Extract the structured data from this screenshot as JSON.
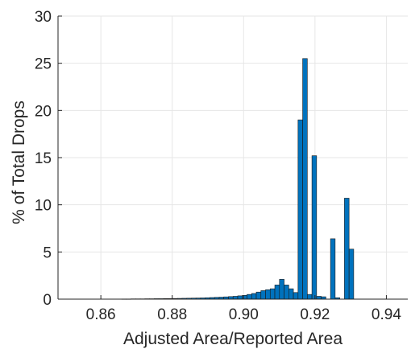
{
  "chart_data": {
    "type": "bar",
    "xlabel": "Adjusted Area/Reported Area",
    "ylabel": "% of Total Drops",
    "xlim": [
      0.848,
      0.946
    ],
    "ylim": [
      0,
      30
    ],
    "xticks": [
      0.86,
      0.88,
      0.9,
      0.92,
      0.94
    ],
    "xtick_labels": [
      "0.86",
      "0.88",
      "0.90",
      "0.92",
      "0.94"
    ],
    "yticks": [
      0,
      5,
      10,
      15,
      20,
      25,
      30
    ],
    "ytick_labels": [
      "0",
      "5",
      "10",
      "15",
      "20",
      "25",
      "30"
    ],
    "grid": true,
    "bar_color": "#0072BD",
    "bar_edge_color": "#1a1a1a",
    "bin_width": 0.0013,
    "x": [
      0.8665,
      0.8678,
      0.8691,
      0.8704,
      0.8717,
      0.873,
      0.8743,
      0.8756,
      0.8769,
      0.8782,
      0.8795,
      0.8808,
      0.8821,
      0.8834,
      0.8847,
      0.886,
      0.8873,
      0.8886,
      0.8899,
      0.8912,
      0.8925,
      0.8938,
      0.8951,
      0.8964,
      0.8977,
      0.899,
      0.9003,
      0.9016,
      0.9029,
      0.9042,
      0.9055,
      0.9068,
      0.9081,
      0.9094,
      0.9107,
      0.912,
      0.9133,
      0.9146,
      0.9159,
      0.9172,
      0.9185,
      0.9198,
      0.9211,
      0.9224,
      0.9237,
      0.925,
      0.9263,
      0.9276,
      0.9289,
      0.9302,
      0.9315,
      0.9328,
      0.9341,
      0.9354,
      0.9367,
      0.938
    ],
    "values": [
      0.02,
      0.02,
      0.03,
      0.03,
      0.03,
      0.04,
      0.04,
      0.05,
      0.05,
      0.06,
      0.06,
      0.07,
      0.08,
      0.09,
      0.1,
      0.11,
      0.12,
      0.13,
      0.15,
      0.17,
      0.19,
      0.21,
      0.24,
      0.27,
      0.3,
      0.35,
      0.4,
      0.5,
      0.6,
      0.75,
      0.9,
      1.0,
      1.1,
      1.5,
      2.1,
      1.5,
      1.1,
      0.7,
      19.0,
      25.5,
      0.5,
      15.2,
      0.3,
      0.25,
      0.0,
      6.4,
      0.15,
      0.0,
      10.7,
      5.3,
      0.0,
      0.0,
      0.0,
      0.0,
      0.0,
      0.0
    ]
  }
}
